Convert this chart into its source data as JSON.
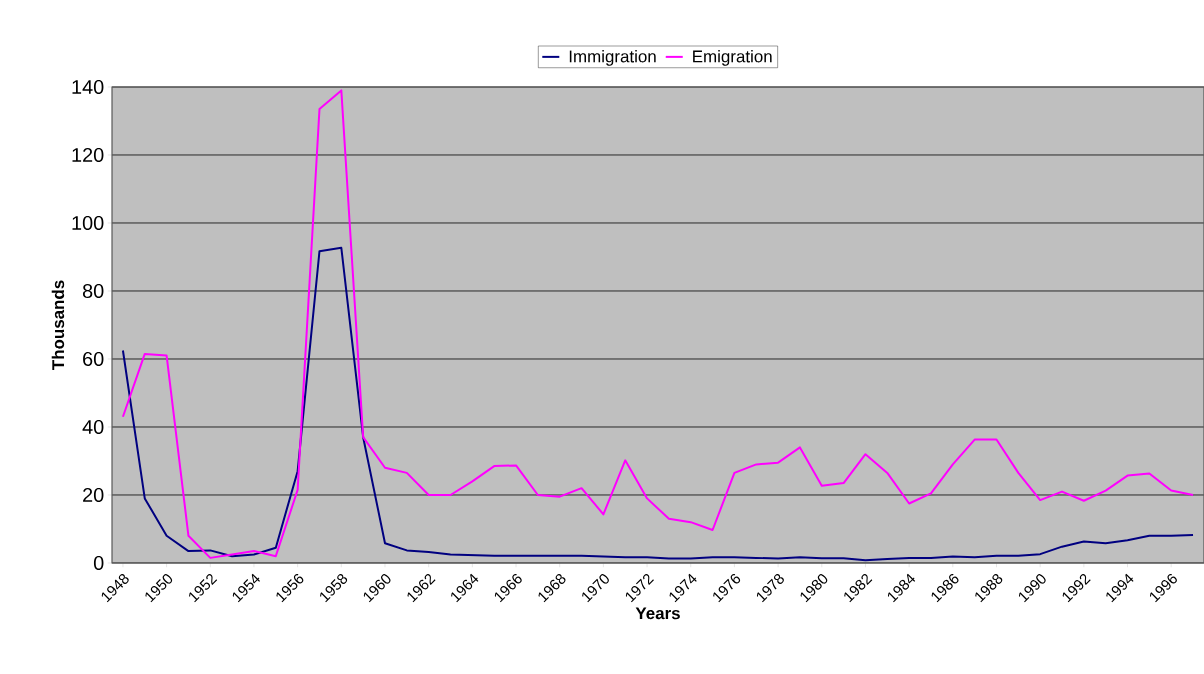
{
  "chart_data": {
    "type": "line",
    "xlabel": "Years",
    "ylabel": "Thousands",
    "categories": [
      "1948",
      null,
      "1950",
      null,
      "1952",
      null,
      "1954",
      null,
      "1956",
      null,
      "1958",
      null,
      "1960",
      null,
      "1962",
      null,
      "1964",
      null,
      "1966",
      null,
      "1968",
      null,
      "1970",
      null,
      "1972",
      null,
      "1974",
      null,
      "1976",
      null,
      "1978",
      null,
      "1980",
      null,
      "1982",
      null,
      "1984",
      null,
      "1986",
      null,
      "1988",
      null,
      "1990",
      null,
      "1992",
      null,
      "1994",
      null,
      "1996",
      null
    ],
    "series": [
      {
        "name": "Immigration",
        "color": "#000080",
        "values": [
          62.5,
          19,
          8,
          3.5,
          3.7,
          2,
          2.5,
          4.5,
          27,
          91.7,
          92.7,
          37,
          5.8,
          3.7,
          3.2,
          2.5,
          2.3,
          2.1,
          2.1,
          2.1,
          2.1,
          2.1,
          1.9,
          1.7,
          1.7,
          1.3,
          1.3,
          1.7,
          1.7,
          1.5,
          1.3,
          1.7,
          1.4,
          1.4,
          0.8,
          1.2,
          1.5,
          1.5,
          1.9,
          1.7,
          2.1,
          2.1,
          2.6,
          4.8,
          6.3,
          5.8,
          6.7,
          8,
          8,
          8.2
        ]
      },
      {
        "name": "Emigration",
        "color": "#ff00ff",
        "values": [
          43,
          61.5,
          61,
          8,
          1.5,
          2.5,
          3.5,
          2,
          21.5,
          133.5,
          139,
          37,
          28,
          26.5,
          20,
          20,
          24,
          28.5,
          28.7,
          20,
          19.5,
          22,
          14.3,
          30.2,
          19,
          13,
          12,
          9.7,
          26.5,
          29,
          29.5,
          34,
          22.7,
          23.5,
          32,
          26.5,
          17.5,
          20.5,
          29,
          36.3,
          36.3,
          26.5,
          18.5,
          21,
          18.3,
          21.3,
          25.7,
          26.3,
          21.3,
          20
        ]
      }
    ],
    "ylim": [
      0,
      140
    ],
    "yticks": [
      0,
      20,
      40,
      60,
      80,
      100,
      120,
      140
    ],
    "grid": "y",
    "legend": "top",
    "line_style": "solid",
    "marker": "none"
  }
}
